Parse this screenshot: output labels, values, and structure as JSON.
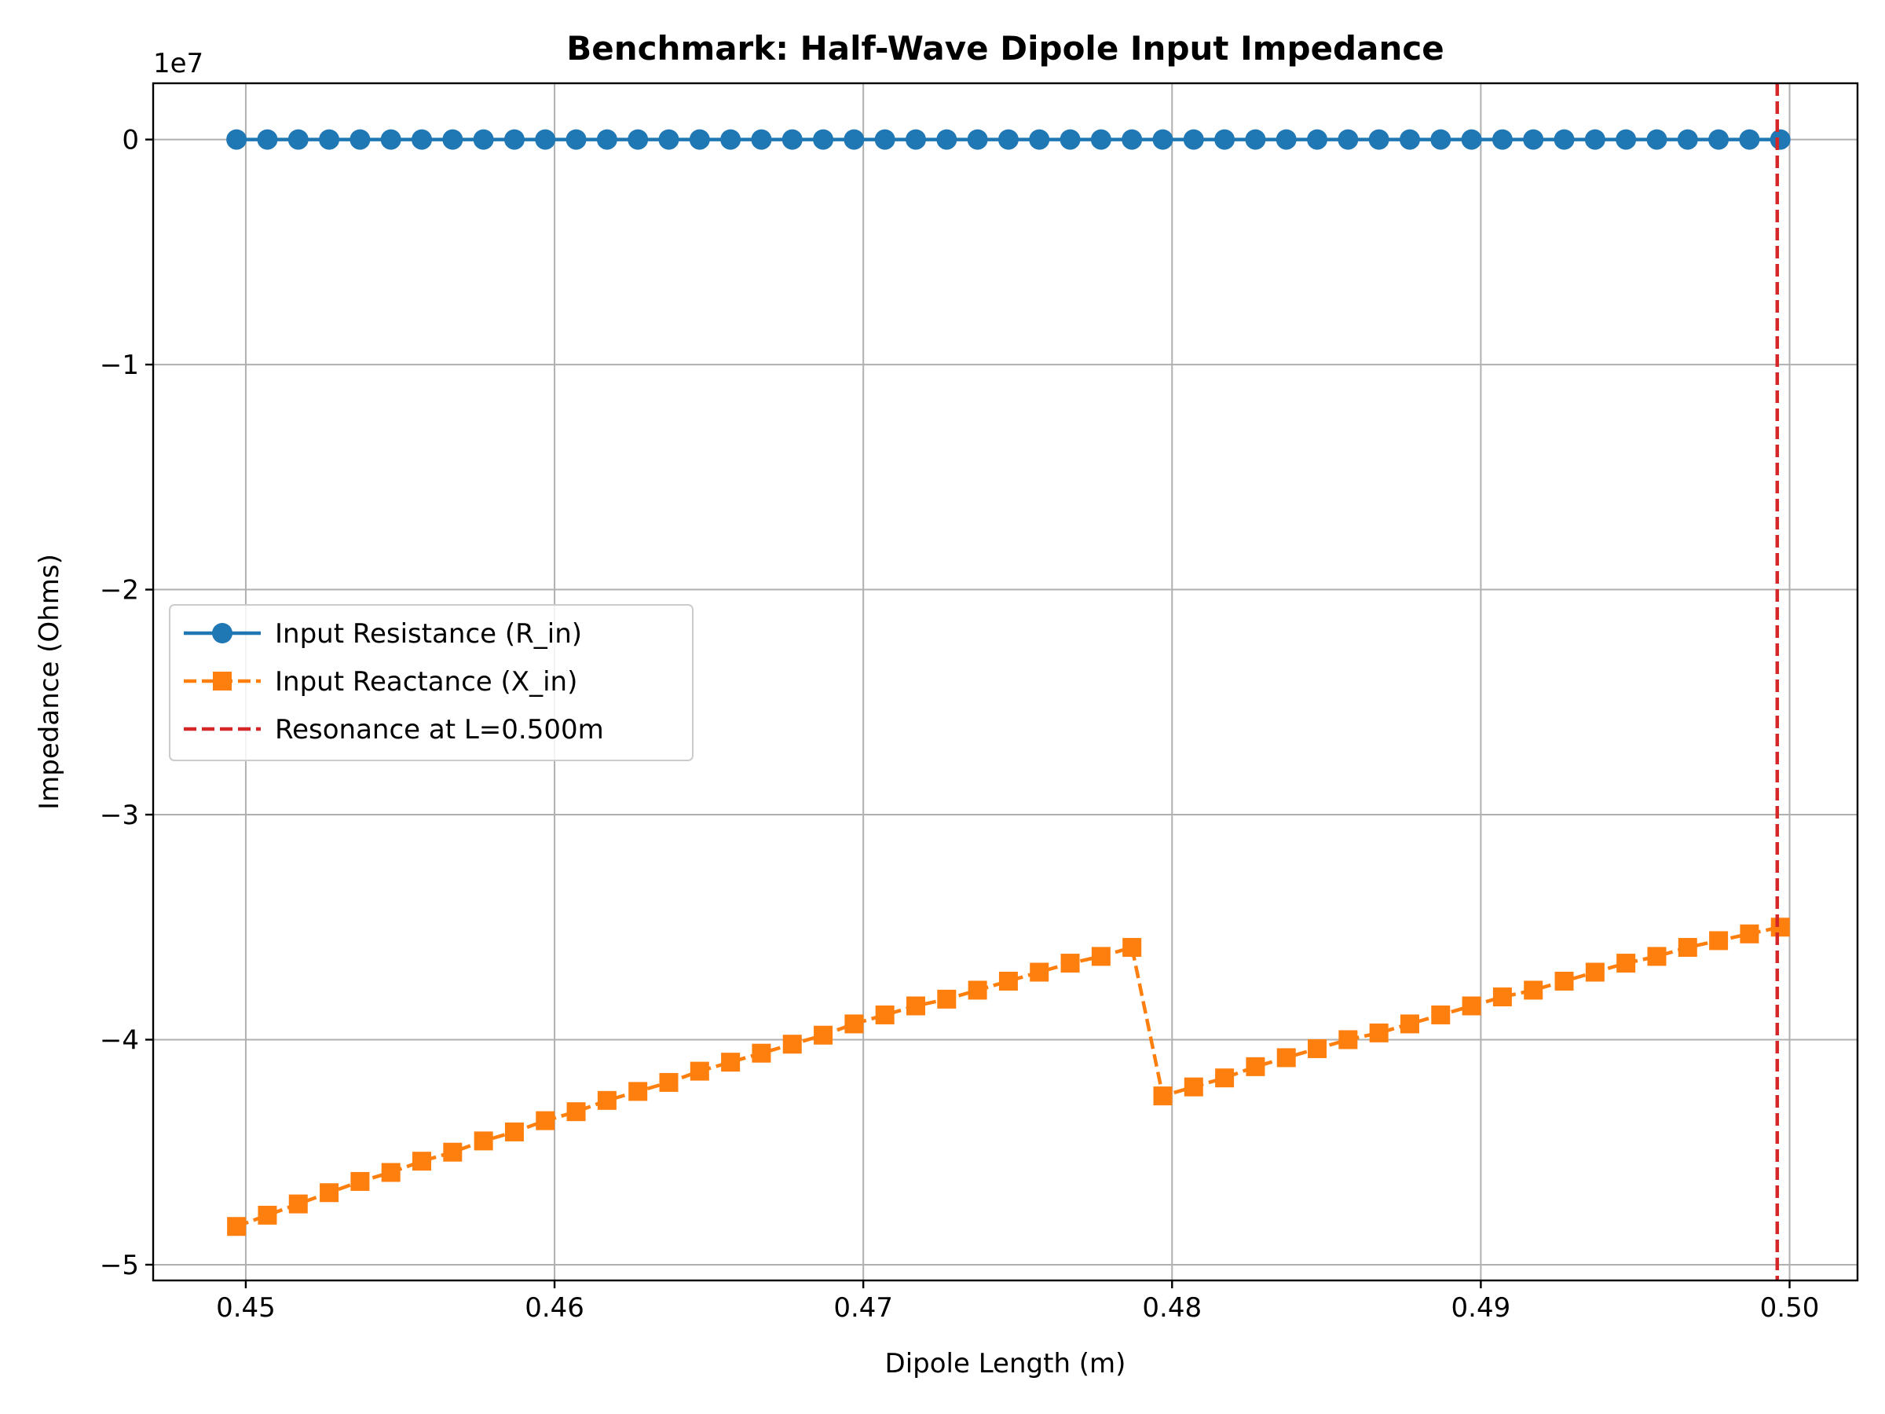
{
  "chart_data": {
    "type": "line",
    "title": "Benchmark: Half-Wave Dipole Input Impedance",
    "xlabel": "Dipole Length (m)",
    "ylabel": "Impedance (Ohms)",
    "y_offset_text": "1e7",
    "xlim": [
      0.447,
      0.5022
    ],
    "ylim": [
      -50700000,
      2500000
    ],
    "xticks": [
      0.45,
      0.46,
      0.47,
      0.48,
      0.49,
      0.5
    ],
    "xtick_labels": [
      "0.45",
      "0.46",
      "0.47",
      "0.48",
      "0.49",
      "0.50"
    ],
    "yticks": [
      0,
      -10000000,
      -20000000,
      -30000000,
      -40000000,
      -50000000
    ],
    "ytick_labels": [
      "0",
      "−1",
      "−2",
      "−3",
      "−4",
      "−5"
    ],
    "grid": true,
    "legend_position": "center-left",
    "series": [
      {
        "name": "Input Resistance (R_in)",
        "color": "#1f77b4",
        "linestyle": "solid",
        "marker": "circle",
        "x": [
          0.4497,
          0.4507,
          0.4517,
          0.4527,
          0.4537,
          0.4547,
          0.4557,
          0.4567,
          0.4577,
          0.4587,
          0.4597,
          0.4607,
          0.4617,
          0.4627,
          0.4637,
          0.4647,
          0.4657,
          0.4667,
          0.4677,
          0.4687,
          0.4697,
          0.4707,
          0.4717,
          0.4727,
          0.4737,
          0.4747,
          0.4757,
          0.4767,
          0.4777,
          0.4787,
          0.4797,
          0.4807,
          0.4817,
          0.4827,
          0.4837,
          0.4847,
          0.4857,
          0.4867,
          0.4877,
          0.4887,
          0.4897,
          0.4907,
          0.4917,
          0.4927,
          0.4937,
          0.4947,
          0.4957,
          0.4967,
          0.4977,
          0.4987,
          0.4997
        ],
        "y": [
          0,
          0,
          0,
          0,
          0,
          0,
          0,
          0,
          0,
          0,
          0,
          0,
          0,
          0,
          0,
          0,
          0,
          0,
          0,
          0,
          0,
          0,
          0,
          0,
          0,
          0,
          0,
          0,
          0,
          0,
          0,
          0,
          0,
          0,
          0,
          0,
          0,
          0,
          0,
          0,
          0,
          0,
          0,
          0,
          0,
          0,
          0,
          0,
          0,
          0,
          0
        ]
      },
      {
        "name": "Input Reactance (X_in)",
        "color": "#ff7f0e",
        "linestyle": "dashed",
        "marker": "square",
        "x": [
          0.4497,
          0.4507,
          0.4517,
          0.4527,
          0.4537,
          0.4547,
          0.4557,
          0.4567,
          0.4577,
          0.4587,
          0.4597,
          0.4607,
          0.4617,
          0.4627,
          0.4637,
          0.4647,
          0.4657,
          0.4667,
          0.4677,
          0.4687,
          0.4697,
          0.4707,
          0.4717,
          0.4727,
          0.4737,
          0.4747,
          0.4757,
          0.4767,
          0.4777,
          0.4787,
          0.4797,
          0.4807,
          0.4817,
          0.4827,
          0.4837,
          0.4847,
          0.4857,
          0.4867,
          0.4877,
          0.4887,
          0.4897,
          0.4907,
          0.4917,
          0.4927,
          0.4937,
          0.4947,
          0.4957,
          0.4967,
          0.4977,
          0.4987,
          0.4997
        ],
        "y": [
          -48300000,
          -47800000,
          -47300000,
          -46800000,
          -46300000,
          -45900000,
          -45400000,
          -45000000,
          -44500000,
          -44100000,
          -43600000,
          -43200000,
          -42700000,
          -42300000,
          -41900000,
          -41400000,
          -41000000,
          -40600000,
          -40200000,
          -39800000,
          -39300000,
          -38900000,
          -38500000,
          -38200000,
          -37800000,
          -37400000,
          -37000000,
          -36600000,
          -36300000,
          -35900000,
          -42500000,
          -42100000,
          -41700000,
          -41200000,
          -40800000,
          -40400000,
          -40000000,
          -39700000,
          -39300000,
          -38900000,
          -38500000,
          -38100000,
          -37800000,
          -37400000,
          -37000000,
          -36600000,
          -36300000,
          -35900000,
          -35600000,
          -35300000,
          -35000000
        ]
      },
      {
        "name": "Resonance at L=0.500m",
        "color": "#d62728",
        "linestyle": "dashed",
        "type": "vline",
        "x_value": 0.4996
      }
    ]
  }
}
